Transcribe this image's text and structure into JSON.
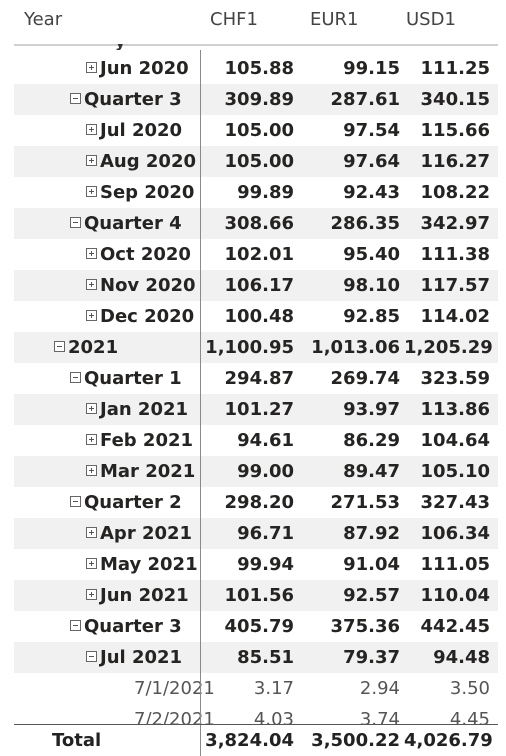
{
  "header": {
    "col_year": "Year",
    "col_chf": "CHF1",
    "col_eur": "EUR1",
    "col_usd": "USD1"
  },
  "top_partial": "y",
  "rows": [
    {
      "label": "Jun 2020",
      "level": 2,
      "toggle": "plus",
      "alt": false,
      "chf": "105.88",
      "eur": "99.15",
      "usd": "111.25"
    },
    {
      "label": "Quarter 3",
      "level": 1,
      "toggle": "minus",
      "alt": true,
      "chf": "309.89",
      "eur": "287.61",
      "usd": "340.15"
    },
    {
      "label": "Jul 2020",
      "level": 2,
      "toggle": "plus",
      "alt": false,
      "chf": "105.00",
      "eur": "97.54",
      "usd": "115.66"
    },
    {
      "label": "Aug 2020",
      "level": 2,
      "toggle": "plus",
      "alt": true,
      "chf": "105.00",
      "eur": "97.64",
      "usd": "116.27"
    },
    {
      "label": "Sep 2020",
      "level": 2,
      "toggle": "plus",
      "alt": false,
      "chf": "99.89",
      "eur": "92.43",
      "usd": "108.22"
    },
    {
      "label": "Quarter 4",
      "level": 1,
      "toggle": "minus",
      "alt": true,
      "chf": "308.66",
      "eur": "286.35",
      "usd": "342.97"
    },
    {
      "label": "Oct 2020",
      "level": 2,
      "toggle": "plus",
      "alt": false,
      "chf": "102.01",
      "eur": "95.40",
      "usd": "111.38"
    },
    {
      "label": "Nov 2020",
      "level": 2,
      "toggle": "plus",
      "alt": true,
      "chf": "106.17",
      "eur": "98.10",
      "usd": "117.57"
    },
    {
      "label": "Dec 2020",
      "level": 2,
      "toggle": "plus",
      "alt": false,
      "chf": "100.48",
      "eur": "92.85",
      "usd": "114.02"
    },
    {
      "label": "2021",
      "level": 0,
      "toggle": "minus",
      "alt": true,
      "chf": "1,100.95",
      "eur": "1,013.06",
      "usd": "1,205.29"
    },
    {
      "label": "Quarter 1",
      "level": 1,
      "toggle": "minus",
      "alt": false,
      "chf": "294.87",
      "eur": "269.74",
      "usd": "323.59"
    },
    {
      "label": "Jan 2021",
      "level": 2,
      "toggle": "plus",
      "alt": true,
      "chf": "101.27",
      "eur": "93.97",
      "usd": "113.86"
    },
    {
      "label": "Feb 2021",
      "level": 2,
      "toggle": "plus",
      "alt": false,
      "chf": "94.61",
      "eur": "86.29",
      "usd": "104.64"
    },
    {
      "label": "Mar 2021",
      "level": 2,
      "toggle": "plus",
      "alt": true,
      "chf": "99.00",
      "eur": "89.47",
      "usd": "105.10"
    },
    {
      "label": "Quarter 2",
      "level": 1,
      "toggle": "minus",
      "alt": false,
      "chf": "298.20",
      "eur": "271.53",
      "usd": "327.43"
    },
    {
      "label": "Apr 2021",
      "level": 2,
      "toggle": "plus",
      "alt": true,
      "chf": "96.71",
      "eur": "87.92",
      "usd": "106.34"
    },
    {
      "label": "May 2021",
      "level": 2,
      "toggle": "plus",
      "alt": false,
      "chf": "99.94",
      "eur": "91.04",
      "usd": "111.05"
    },
    {
      "label": "Jun 2021",
      "level": 2,
      "toggle": "plus",
      "alt": true,
      "chf": "101.56",
      "eur": "92.57",
      "usd": "110.04"
    },
    {
      "label": "Quarter 3",
      "level": 1,
      "toggle": "minus",
      "alt": false,
      "chf": "405.79",
      "eur": "375.36",
      "usd": "442.45"
    },
    {
      "label": "Jul 2021",
      "level": 2,
      "toggle": "minus",
      "alt": true,
      "chf": "85.51",
      "eur": "79.37",
      "usd": "94.48"
    },
    {
      "label": "7/1/2021",
      "level": 3,
      "toggle": "none",
      "alt": false,
      "chf": "3.17",
      "eur": "2.94",
      "usd": "3.50"
    },
    {
      "label": "7/2/2021",
      "level": 3,
      "toggle": "none",
      "alt": false,
      "chf": "4.03",
      "eur": "3.74",
      "usd": "4.45"
    }
  ],
  "total": {
    "label": "Total",
    "chf": "3,824.04",
    "eur": "3,500.22",
    "usd": "4,026.79"
  },
  "colors": {
    "alt_row": "#f1f1f1",
    "divider": "#8a8a8a",
    "text": "#252423"
  }
}
